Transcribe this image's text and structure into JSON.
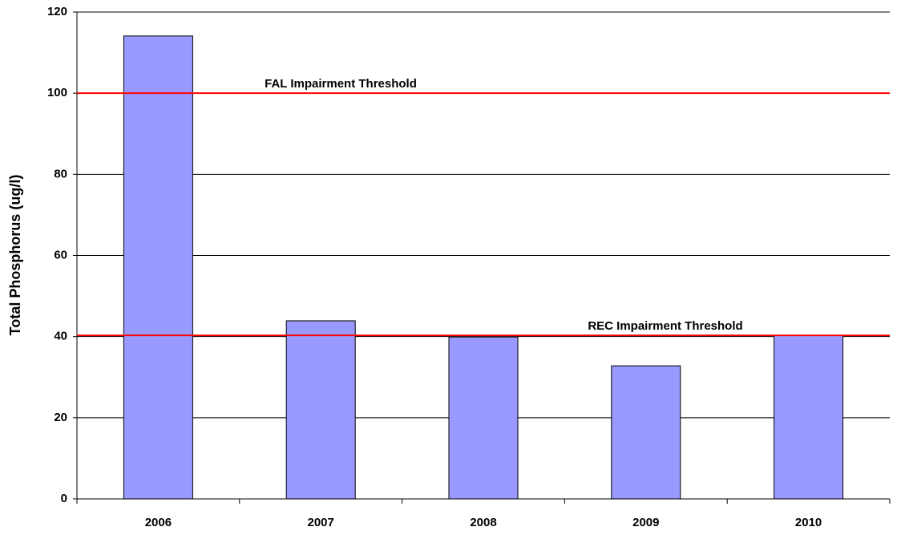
{
  "chart_data": {
    "type": "bar",
    "ylabel": "Total Phosphorus (ug/l)",
    "categories": [
      "2006",
      "2007",
      "2008",
      "2009",
      "2010"
    ],
    "values": [
      114.1,
      43.9,
      39.9,
      32.8,
      40.3
    ],
    "color": "#9999ff",
    "ylim": [
      0,
      120
    ],
    "yticks": [
      0,
      20,
      40,
      60,
      80,
      100,
      120
    ],
    "grid": true,
    "thresholds": [
      {
        "label": "FAL Impairment Threshold",
        "value": 100,
        "color": "#ff0000"
      },
      {
        "label": "REC Impairment Threshold",
        "value": 40.3,
        "color": "#ff0000"
      }
    ]
  }
}
